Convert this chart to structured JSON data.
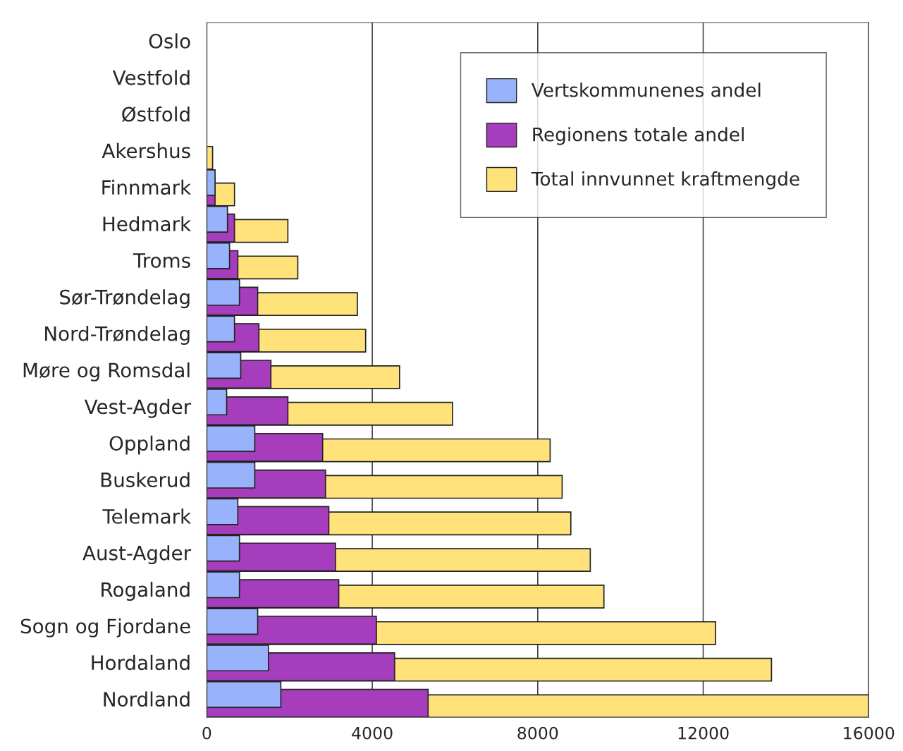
{
  "chart_data": {
    "type": "bar",
    "orientation": "horizontal",
    "categories": [
      "Oslo",
      "Vestfold",
      "Østfold",
      "Akershus",
      "Finnmark",
      "Hedmark",
      "Troms",
      "Sør-Trøndelag",
      "Nord-Trøndelag",
      "Møre og Romsdal",
      "Vest-Agder",
      "Oppland",
      "Buskerud",
      "Telemark",
      "Aust-Agder",
      "Rogaland",
      "Sogn og Fjordane",
      "Hordaland",
      "Nordland"
    ],
    "series": [
      {
        "name": "Total innvunnet kraftmengde",
        "color": "#ffe27a",
        "values": [
          null,
          null,
          null,
          140,
          670,
          1960,
          2200,
          3640,
          3840,
          4660,
          5940,
          8300,
          8590,
          8800,
          9270,
          9600,
          12300,
          13650,
          16000
        ]
      },
      {
        "name": "Regionens totale andel",
        "color": "#a63dbd",
        "values": [
          null,
          null,
          null,
          null,
          200,
          670,
          750,
          1230,
          1260,
          1550,
          1960,
          2800,
          2870,
          2950,
          3110,
          3190,
          4100,
          4540,
          5350
        ]
      },
      {
        "name": "Vertskommunenes andel",
        "color": "#98b2fb",
        "values": [
          null,
          null,
          null,
          null,
          200,
          500,
          550,
          790,
          670,
          820,
          480,
          1160,
          1160,
          750,
          790,
          790,
          1230,
          1490,
          1790
        ]
      }
    ],
    "xlim": [
      0,
      16000
    ],
    "xticks": [
      0,
      4000,
      8000,
      12000,
      16000
    ],
    "grid": "x",
    "legend": "top right"
  }
}
